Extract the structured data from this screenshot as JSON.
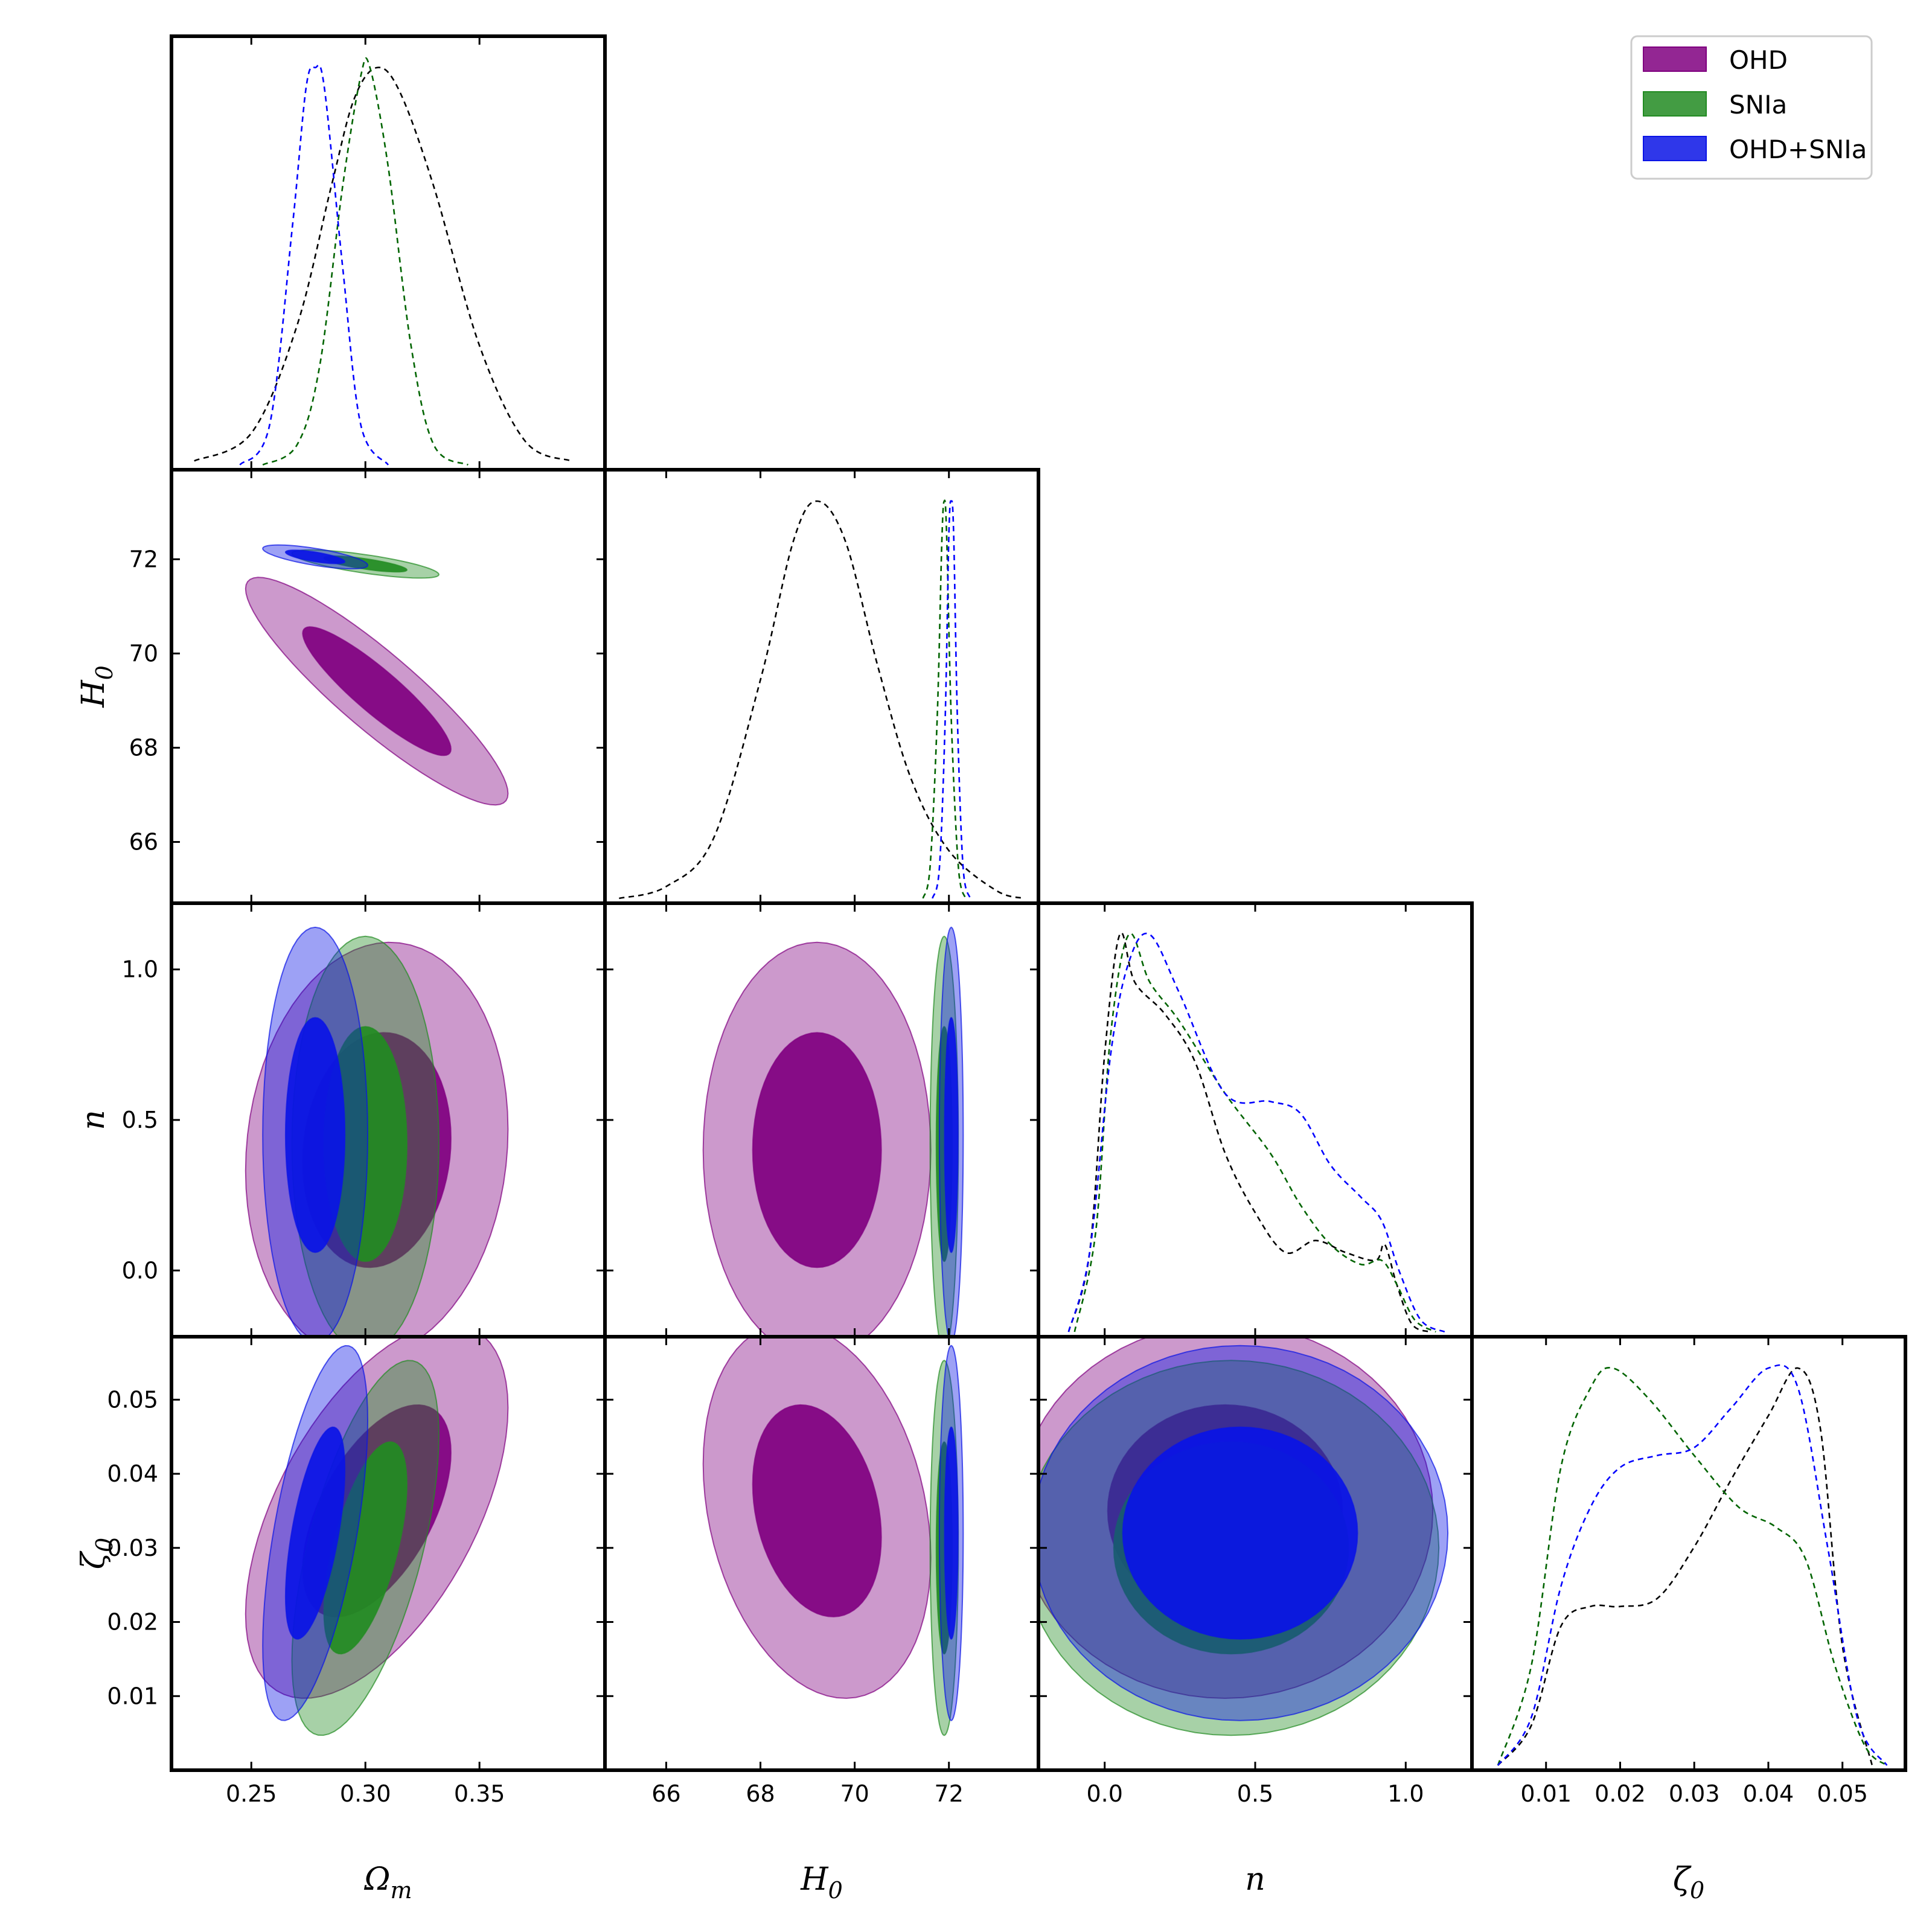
{
  "chart_data": {
    "type": "corner",
    "params": [
      "Omega_m",
      "H0",
      "n",
      "zeta0"
    ],
    "axis_labels": {
      "Omega_m": {
        "base": "Ω",
        "sub": "m"
      },
      "H0": {
        "base": "H",
        "sub": "0"
      },
      "n": {
        "base": "n",
        "sub": ""
      },
      "zeta0": {
        "base": "ζ",
        "sub": "0"
      }
    },
    "ranges": {
      "Omega_m": [
        0.215,
        0.405
      ],
      "H0": [
        64.7,
        73.9
      ],
      "n": [
        -0.22,
        1.22
      ],
      "zeta0": [
        0.0,
        0.0585
      ]
    },
    "ticks": {
      "Omega_m": [
        0.25,
        0.3,
        0.35
      ],
      "H0": [
        66,
        68,
        70,
        72
      ],
      "n": [
        0.0,
        0.5,
        1.0
      ],
      "zeta0": [
        0.01,
        0.02,
        0.03,
        0.04,
        0.05
      ]
    },
    "tick_labels": {
      "Omega_m": [
        "0.25",
        "0.30",
        "0.35"
      ],
      "H0": [
        "66",
        "68",
        "70",
        "72"
      ],
      "n": [
        "0.0",
        "0.5",
        "1.0"
      ],
      "zeta0": [
        "0.01",
        "0.02",
        "0.03",
        "0.04",
        "0.05"
      ]
    },
    "legend": {
      "position": "top-right",
      "entries": [
        {
          "label": "OHD",
          "color": "#800080"
        },
        {
          "label": "SNIa",
          "color": "#228b22"
        },
        {
          "label": "OHD+SNIa",
          "color": "#0a14e6"
        }
      ]
    },
    "series": [
      {
        "name": "OHD",
        "fill": "#800080",
        "line_color": "#000000",
        "mean": {
          "Omega_m": 0.305,
          "H0": 69.2,
          "n": 0.4,
          "zeta0": 0.035
        },
        "sigma": {
          "Omega_m": 0.025,
          "H0": 1.05,
          "n": 0.3,
          "zeta0": 0.011
        },
        "corr": {
          "Omega_m|H0": -0.9,
          "Omega_m|n": 0.1,
          "Omega_m|zeta0": 0.55,
          "H0|n": 0.0,
          "H0|zeta0": -0.25,
          "n|zeta0": 0.0
        }
      },
      {
        "name": "SNIa",
        "fill": "#228b22",
        "line_color": "#006400",
        "mean": {
          "Omega_m": 0.3,
          "H0": 71.9,
          "n": 0.42,
          "zeta0": 0.03
        },
        "sigma": {
          "Omega_m": 0.014,
          "H0": 0.13,
          "n": 0.3,
          "zeta0": 0.011
        },
        "corr": {
          "Omega_m|H0": -0.75,
          "Omega_m|n": 0.0,
          "Omega_m|zeta0": 0.6,
          "H0|n": 0.0,
          "H0|zeta0": 0.0,
          "n|zeta0": 0.0
        }
      },
      {
        "name": "OHD+SNIa",
        "fill": "#0a14e6",
        "line_color": "#0000ff",
        "mean": {
          "Omega_m": 0.278,
          "H0": 72.05,
          "n": 0.45,
          "zeta0": 0.032
        },
        "sigma": {
          "Omega_m": 0.01,
          "H0": 0.11,
          "n": 0.3,
          "zeta0": 0.011
        },
        "corr": {
          "Omega_m|H0": -0.7,
          "Omega_m|n": 0.0,
          "Omega_m|zeta0": 0.6,
          "H0|n": 0.0,
          "H0|zeta0": 0.0,
          "n|zeta0": 0.0
        }
      }
    ],
    "marginals": {
      "Omega_m": [
        {
          "series": "OHD",
          "x": [
            0.225,
            0.25,
            0.27,
            0.285,
            0.295,
            0.305,
            0.315,
            0.33,
            0.35,
            0.37,
            0.39
          ],
          "y": [
            0.01,
            0.08,
            0.35,
            0.7,
            0.92,
            1.0,
            0.94,
            0.7,
            0.3,
            0.06,
            0.01
          ]
        },
        {
          "series": "SNIa",
          "x": [
            0.255,
            0.27,
            0.28,
            0.29,
            0.298,
            0.302,
            0.31,
            0.32,
            0.33,
            0.345
          ],
          "y": [
            0.0,
            0.05,
            0.25,
            0.7,
            0.98,
            1.0,
            0.75,
            0.3,
            0.05,
            0.0
          ]
        },
        {
          "series": "OHD+SNIa",
          "x": [
            0.245,
            0.258,
            0.268,
            0.274,
            0.278,
            0.282,
            0.29,
            0.298,
            0.31
          ],
          "y": [
            0.0,
            0.1,
            0.6,
            0.95,
            1.0,
            0.95,
            0.5,
            0.1,
            0.0
          ]
        }
      ],
      "H0": [
        {
          "series": "OHD",
          "x": [
            65.0,
            66.0,
            67.0,
            68.0,
            68.7,
            69.2,
            69.8,
            70.5,
            71.2,
            72.0,
            73.0,
            73.6
          ],
          "y": [
            0.0,
            0.03,
            0.15,
            0.55,
            0.9,
            1.0,
            0.9,
            0.58,
            0.3,
            0.12,
            0.02,
            0.0
          ]
        },
        {
          "series": "SNIa",
          "x": [
            71.45,
            71.6,
            71.75,
            71.85,
            71.9,
            71.95,
            72.05,
            72.2,
            72.35
          ],
          "y": [
            0.0,
            0.08,
            0.45,
            0.9,
            1.0,
            0.92,
            0.45,
            0.08,
            0.0
          ]
        },
        {
          "series": "OHD+SNIa",
          "x": [
            71.65,
            71.8,
            71.92,
            72.0,
            72.05,
            72.1,
            72.18,
            72.3,
            72.45
          ],
          "y": [
            0.0,
            0.08,
            0.45,
            0.92,
            1.0,
            0.92,
            0.45,
            0.08,
            0.0
          ]
        }
      ],
      "n": [
        {
          "series": "OHD",
          "x": [
            -0.12,
            -0.05,
            0.0,
            0.05,
            0.1,
            0.2,
            0.3,
            0.4,
            0.5,
            0.6,
            0.7,
            0.8,
            0.9,
            0.93,
            0.97,
            1.02,
            1.08
          ],
          "y": [
            0.0,
            0.2,
            0.7,
            1.0,
            0.88,
            0.8,
            0.68,
            0.45,
            0.3,
            0.2,
            0.23,
            0.2,
            0.18,
            0.22,
            0.12,
            0.02,
            0.0
          ]
        },
        {
          "series": "SNIa",
          "x": [
            -0.1,
            -0.03,
            0.02,
            0.08,
            0.15,
            0.25,
            0.4,
            0.55,
            0.65,
            0.75,
            0.85,
            0.92,
            0.97,
            1.03,
            1.1
          ],
          "y": [
            0.0,
            0.25,
            0.75,
            1.0,
            0.88,
            0.78,
            0.6,
            0.45,
            0.32,
            0.22,
            0.17,
            0.18,
            0.12,
            0.03,
            0.0
          ]
        },
        {
          "series": "OHD+SNIa",
          "x": [
            -0.12,
            -0.05,
            0.02,
            0.08,
            0.15,
            0.25,
            0.4,
            0.55,
            0.65,
            0.75,
            0.85,
            0.92,
            0.98,
            1.05,
            1.13
          ],
          "y": [
            0.0,
            0.2,
            0.7,
            0.93,
            1.0,
            0.85,
            0.6,
            0.58,
            0.55,
            0.42,
            0.34,
            0.28,
            0.15,
            0.03,
            0.0
          ]
        }
      ],
      "zeta0": [
        {
          "series": "OHD",
          "x": [
            0.0035,
            0.008,
            0.012,
            0.016,
            0.02,
            0.025,
            0.03,
            0.035,
            0.04,
            0.044,
            0.047,
            0.05,
            0.054
          ],
          "y": [
            0.0,
            0.1,
            0.35,
            0.4,
            0.4,
            0.42,
            0.55,
            0.72,
            0.88,
            1.0,
            0.85,
            0.3,
            0.0
          ]
        },
        {
          "series": "SNIa",
          "x": [
            0.0035,
            0.008,
            0.012,
            0.016,
            0.019,
            0.024,
            0.03,
            0.036,
            0.041,
            0.045,
            0.049,
            0.053,
            0.056
          ],
          "y": [
            0.0,
            0.25,
            0.75,
            0.95,
            1.0,
            0.92,
            0.78,
            0.65,
            0.6,
            0.52,
            0.25,
            0.05,
            0.0
          ]
        },
        {
          "series": "OHD+SNIa",
          "x": [
            0.0035,
            0.008,
            0.012,
            0.016,
            0.02,
            0.025,
            0.03,
            0.035,
            0.04,
            0.044,
            0.048,
            0.052,
            0.056
          ],
          "y": [
            0.0,
            0.12,
            0.45,
            0.65,
            0.75,
            0.78,
            0.8,
            0.9,
            1.0,
            0.95,
            0.55,
            0.12,
            0.0
          ]
        }
      ]
    }
  }
}
